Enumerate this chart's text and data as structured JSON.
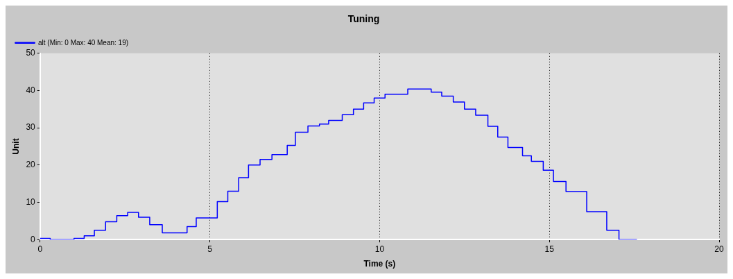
{
  "chart_data": {
    "type": "step",
    "title": "Tuning",
    "xlabel": "Time (s)",
    "ylabel": "Unit",
    "xlim": [
      0,
      20
    ],
    "xticks": [
      0,
      5,
      10,
      15,
      20
    ],
    "ylim": [
      0,
      50
    ],
    "yticks": [
      0,
      10,
      20,
      30,
      40,
      50
    ],
    "grid": "x",
    "legend": "top left",
    "marker": "none",
    "series": [
      {
        "name": "alt (Min: 0 Max: 40 Mean: 19)",
        "color": "#0000ff",
        "x": [
          0,
          0.3,
          1.0,
          1.3,
          1.6,
          1.93,
          2.26,
          2.58,
          2.9,
          3.23,
          3.6,
          4.33,
          4.6,
          5.22,
          5.53,
          5.85,
          6.14,
          6.48,
          6.83,
          7.28,
          7.52,
          7.89,
          8.23,
          8.5,
          8.9,
          9.23,
          9.53,
          9.84,
          10.16,
          10.83,
          11.52,
          11.83,
          12.17,
          12.5,
          12.83,
          13.19,
          13.48,
          13.78,
          14.21,
          14.47,
          14.82,
          15.12,
          15.49,
          16.1,
          16.69,
          17.05,
          17.58
        ],
        "values": [
          0.3,
          0,
          0.3,
          1,
          2.5,
          4.8,
          6.4,
          7.3,
          6,
          4,
          1.8,
          3.5,
          5.8,
          10.2,
          13,
          16.6,
          20,
          21.5,
          22.8,
          25.3,
          28.8,
          30.5,
          31,
          32,
          33.5,
          35,
          36.7,
          38,
          39,
          40.4,
          39.6,
          38.5,
          36.9,
          35,
          33.4,
          30.4,
          27.5,
          24.7,
          22.5,
          21,
          18.6,
          15.6,
          12.9,
          7.5,
          2.5,
          0,
          0
        ]
      }
    ]
  }
}
